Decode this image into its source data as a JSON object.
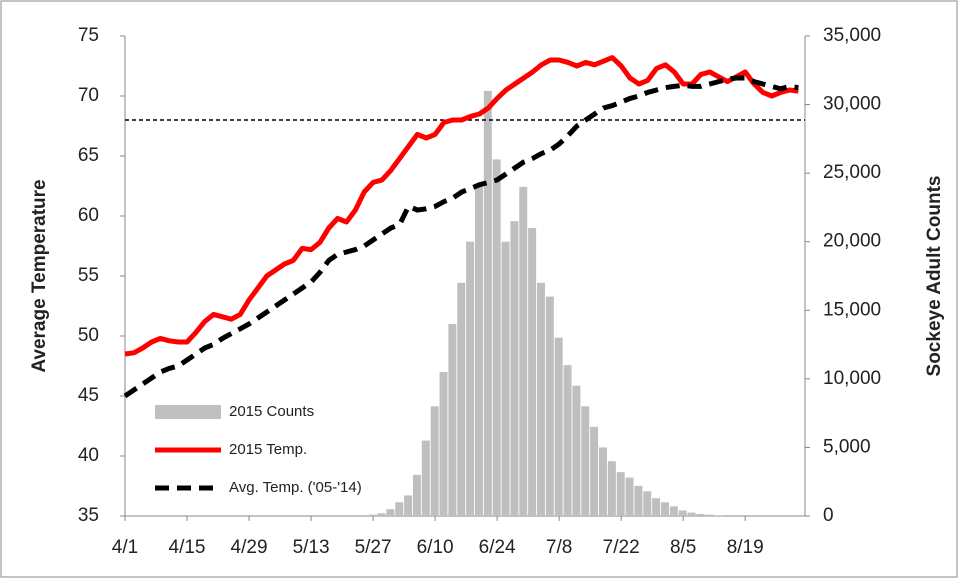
{
  "chart_data": {
    "type": "combo",
    "categories": [
      "4/1",
      null,
      null,
      null,
      null,
      null,
      null,
      "4/15",
      null,
      null,
      null,
      null,
      null,
      null,
      "4/29",
      null,
      null,
      null,
      null,
      null,
      null,
      "5/13",
      null,
      null,
      null,
      null,
      null,
      null,
      "5/27",
      null,
      null,
      null,
      null,
      null,
      null,
      "6/10",
      null,
      null,
      null,
      null,
      null,
      null,
      "6/24",
      null,
      null,
      null,
      null,
      null,
      null,
      "7/8",
      null,
      null,
      null,
      null,
      null,
      null,
      "7/22",
      null,
      null,
      null,
      null,
      null,
      null,
      "8/5",
      null,
      null,
      null,
      null,
      null,
      null,
      "8/19",
      null,
      null,
      null,
      null,
      null,
      null
    ],
    "series": [
      {
        "name": "2015 Counts",
        "kind": "bar",
        "axis": "y2",
        "color": "#bfbfbf",
        "values": [
          0,
          0,
          0,
          0,
          0,
          0,
          0,
          0,
          0,
          0,
          0,
          0,
          0,
          0,
          0,
          0,
          0,
          0,
          0,
          0,
          0,
          0,
          0,
          0,
          0,
          0,
          0,
          0,
          100,
          200,
          500,
          1000,
          1500,
          3000,
          5500,
          8000,
          10500,
          14000,
          17000,
          20000,
          24000,
          31000,
          26000,
          20000,
          21500,
          24000,
          21000,
          17000,
          16000,
          13000,
          11000,
          9500,
          8000,
          6500,
          5000,
          4000,
          3200,
          2800,
          2200,
          1800,
          1300,
          1000,
          700,
          400,
          250,
          150,
          100,
          50,
          0,
          0,
          0,
          0,
          0,
          0,
          0,
          0,
          0
        ]
      },
      {
        "name": "2015 Temp.",
        "kind": "line",
        "axis": "y",
        "color": "#ff0000",
        "dashed": false,
        "values": [
          48.5,
          48.6,
          49.0,
          49.5,
          49.8,
          49.6,
          49.5,
          49.5,
          50.3,
          51.2,
          51.8,
          51.6,
          51.4,
          51.8,
          53.0,
          54.0,
          55.0,
          55.5,
          56.0,
          56.3,
          57.3,
          57.2,
          57.8,
          59.0,
          59.8,
          59.5,
          60.5,
          62.0,
          62.8,
          63.0,
          63.8,
          64.8,
          65.8,
          66.8,
          66.5,
          66.8,
          67.8,
          68.0,
          68.0,
          68.3,
          68.5,
          69.0,
          69.8,
          70.5,
          71.0,
          71.5,
          72.0,
          72.6,
          73.0,
          73.0,
          72.8,
          72.5,
          72.8,
          72.6,
          72.9,
          73.2,
          72.5,
          71.5,
          71.0,
          71.3,
          72.3,
          72.6,
          72.0,
          71.0,
          71.0,
          71.8,
          72.0,
          71.6,
          71.2,
          71.6,
          72.0,
          71.0,
          70.3,
          70.0,
          70.3,
          70.5,
          70.4
        ]
      },
      {
        "name": "Avg. Temp. ('05-'14)",
        "kind": "line",
        "axis": "y",
        "color": "#000000",
        "dashed": true,
        "values": [
          45.0,
          45.5,
          46.0,
          46.5,
          47.0,
          47.3,
          47.5,
          48.0,
          48.5,
          49.0,
          49.3,
          49.8,
          50.2,
          50.6,
          51.0,
          51.5,
          52.0,
          52.5,
          53.0,
          53.5,
          54.0,
          54.5,
          55.3,
          56.3,
          56.8,
          57.0,
          57.2,
          57.5,
          58.0,
          58.5,
          59.0,
          59.3,
          60.8,
          60.5,
          60.6,
          60.8,
          61.2,
          61.5,
          62.0,
          62.3,
          62.6,
          62.8,
          63.0,
          63.5,
          64.0,
          64.5,
          64.8,
          65.2,
          65.5,
          66.0,
          66.7,
          67.5,
          68.0,
          68.5,
          69.0,
          69.2,
          69.5,
          69.8,
          70.0,
          70.3,
          70.5,
          70.7,
          70.8,
          70.9,
          70.8,
          70.8,
          71.0,
          71.2,
          71.4,
          71.5,
          71.5,
          71.2,
          71.0,
          70.8,
          70.6,
          70.8,
          70.7
        ]
      }
    ],
    "reference_value": 68,
    "ylabel": "Average Temperature",
    "y2label": "Sockeye Adult Counts",
    "ylim": [
      35,
      75
    ],
    "yticks": [
      35,
      40,
      45,
      50,
      55,
      60,
      65,
      70,
      75
    ],
    "y2lim": [
      0,
      35000
    ],
    "y2ticks": [
      0,
      {
        "value": 5000,
        "label": "5,000"
      },
      {
        "value": 10000,
        "label": "10,000"
      },
      {
        "value": 15000,
        "label": "15,000"
      },
      {
        "value": 20000,
        "label": "20,000"
      },
      {
        "value": 25000,
        "label": "25,000"
      },
      {
        "value": 30000,
        "label": "30,000"
      },
      {
        "value": 35000,
        "label": "35,000"
      }
    ],
    "legend": "lower-left"
  }
}
